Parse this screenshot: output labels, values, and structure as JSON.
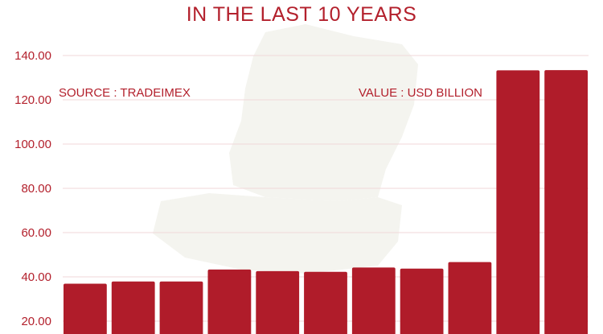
{
  "chart_data": {
    "type": "bar",
    "title": "IN THE LAST 10 YEARS",
    "xlabel": "",
    "ylabel": "",
    "ylim": [
      17,
      143
    ],
    "ytick_values": [
      20,
      40,
      60,
      80,
      100,
      120,
      140
    ],
    "ytick_labels": [
      "20.00",
      "40.00",
      "60.00",
      "80.00",
      "100.00",
      "120.00",
      "140.00"
    ],
    "values": [
      36.9,
      37.9,
      37.9,
      43.3,
      42.6,
      42.3,
      44.2,
      43.7,
      46.7,
      133.3,
      133.4
    ],
    "source_note": "SOURCE : TRADEIMEX",
    "unit_note": "VALUE : USD BILLION",
    "bar_color": "#b01c2a",
    "text_color": "#b3202c",
    "grid_color": "#f0d7d9",
    "grid": true
  }
}
